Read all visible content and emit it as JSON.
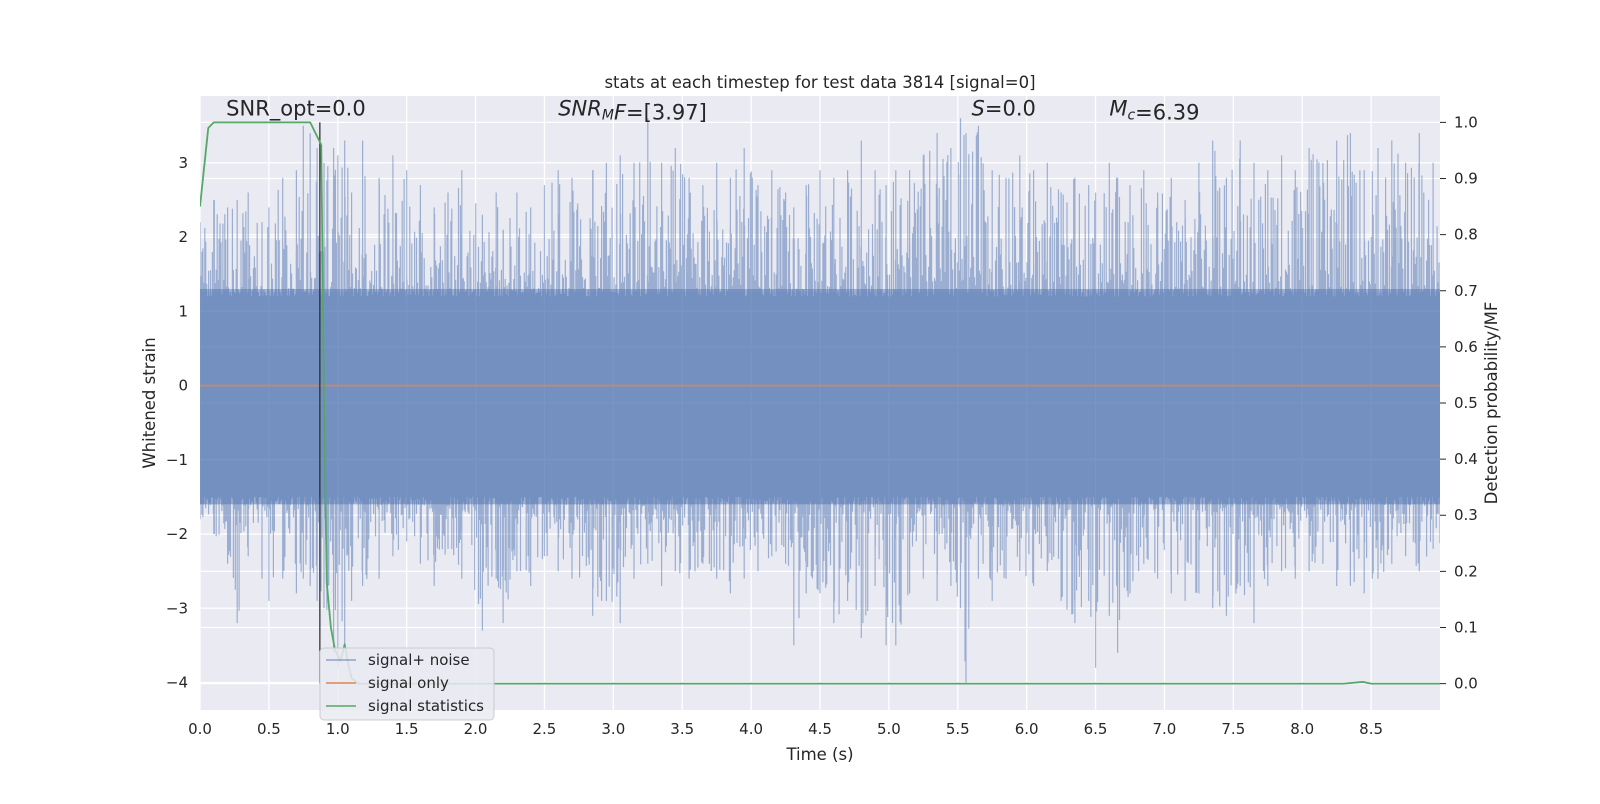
{
  "chart_data": {
    "type": "line",
    "title": "stats at each timestep for test data 3814 [signal=0]",
    "xlabel": "Time (s)",
    "ylabel_left": "Whitened strain",
    "ylabel_right": "Detection probability/MF",
    "xlim": [
      0,
      9.0
    ],
    "ylim_left": [
      -4.37,
      3.9
    ],
    "ylim_right": [
      -0.047,
      1.047
    ],
    "grid": true,
    "legend_placement": "lower-left",
    "x_ticks": [
      "0.0",
      "0.5",
      "1.0",
      "1.5",
      "2.0",
      "2.5",
      "3.0",
      "3.5",
      "4.0",
      "4.5",
      "5.0",
      "5.5",
      "6.0",
      "6.5",
      "7.0",
      "7.5",
      "8.0",
      "8.5"
    ],
    "y_ticks_left": [
      "−4",
      "−3",
      "−2",
      "−1",
      "0",
      "1",
      "2",
      "3"
    ],
    "y_ticks_right": [
      "0.0",
      "0.1",
      "0.2",
      "0.3",
      "0.4",
      "0.5",
      "0.6",
      "0.7",
      "0.8",
      "0.9",
      "1.0"
    ],
    "annotations": [
      {
        "parts": [
          {
            "t": "SNR_opt=0.0",
            "i": false
          }
        ],
        "x": 0.19,
        "y_right": 1.012
      },
      {
        "parts": [
          {
            "t": "SNR",
            "i": true
          },
          {
            "t": "M",
            "i": true,
            "sub": true
          },
          {
            "t": "F",
            "i": true
          },
          {
            "t": "=[3.97]",
            "i": false
          }
        ],
        "x": 2.6,
        "y_right": 1.012
      },
      {
        "parts": [
          {
            "t": "S",
            "i": true
          },
          {
            "t": "=0.0",
            "i": false
          }
        ],
        "x": 5.6,
        "y_right": 1.012
      },
      {
        "parts": [
          {
            "t": "M",
            "i": true
          },
          {
            "t": "c",
            "i": true,
            "sub": true
          },
          {
            "t": "=6.39",
            "i": false
          }
        ],
        "x": 6.6,
        "y_right": 1.012
      }
    ],
    "series": [
      {
        "name": "signal+ noise",
        "axis": "left",
        "color": "#4c72b0",
        "note": "dense whitened noise, approx. envelope below (x, min, max)",
        "envelope": [
          [
            0.0,
            -1.8,
            2.2
          ],
          [
            0.1,
            -2.0,
            2.5
          ],
          [
            0.2,
            -2.4,
            2.4
          ],
          [
            0.27,
            -3.2,
            2.5
          ],
          [
            0.35,
            -2.3,
            2.6
          ],
          [
            0.45,
            -2.6,
            2.2
          ],
          [
            0.5,
            -2.9,
            2.4
          ],
          [
            0.6,
            -2.6,
            2.8
          ],
          [
            0.7,
            -2.8,
            2.9
          ],
          [
            0.75,
            -2.6,
            3.5
          ],
          [
            0.8,
            -2.7,
            3.4
          ],
          [
            0.85,
            -2.9,
            3.2
          ],
          [
            0.9,
            -3.0,
            3.0
          ],
          [
            0.97,
            -3.6,
            3.2
          ],
          [
            1.0,
            -3.8,
            3.1
          ],
          [
            1.05,
            -3.5,
            3.3
          ],
          [
            1.1,
            -2.9,
            2.6
          ],
          [
            1.18,
            -2.7,
            3.3
          ],
          [
            1.3,
            -2.6,
            2.8
          ],
          [
            1.4,
            -2.3,
            3.1
          ],
          [
            1.5,
            -2.1,
            2.9
          ],
          [
            1.6,
            -2.4,
            2.7
          ],
          [
            1.7,
            -2.7,
            2.4
          ],
          [
            1.8,
            -2.2,
            2.6
          ],
          [
            1.9,
            -2.6,
            2.9
          ],
          [
            2.05,
            -3.3,
            2.3
          ],
          [
            2.15,
            -2.6,
            2.6
          ],
          [
            2.2,
            -3.2,
            2.1
          ],
          [
            2.3,
            -2.5,
            2.6
          ],
          [
            2.4,
            -2.7,
            2.4
          ],
          [
            2.5,
            -2.3,
            2.7
          ],
          [
            2.6,
            -2.5,
            2.9
          ],
          [
            2.7,
            -2.6,
            2.8
          ],
          [
            2.85,
            -3.1,
            2.9
          ],
          [
            2.95,
            -2.9,
            3.0
          ],
          [
            3.05,
            -3.2,
            3.1
          ],
          [
            3.15,
            -2.6,
            3.0
          ],
          [
            3.25,
            -2.4,
            3.6
          ],
          [
            3.35,
            -2.7,
            3.0
          ],
          [
            3.45,
            -2.5,
            3.2
          ],
          [
            3.55,
            -2.6,
            2.8
          ],
          [
            3.65,
            -2.4,
            2.7
          ],
          [
            3.75,
            -2.6,
            3.0
          ],
          [
            3.85,
            -2.8,
            2.8
          ],
          [
            3.95,
            -2.6,
            3.2
          ],
          [
            4.05,
            -2.5,
            2.7
          ],
          [
            4.15,
            -2.3,
            2.9
          ],
          [
            4.25,
            -2.4,
            2.6
          ],
          [
            4.31,
            -3.5,
            2.4
          ],
          [
            4.4,
            -2.8,
            2.7
          ],
          [
            4.5,
            -2.8,
            2.9
          ],
          [
            4.6,
            -3.2,
            2.8
          ],
          [
            4.7,
            -2.9,
            2.9
          ],
          [
            4.8,
            -3.4,
            3.3
          ],
          [
            4.9,
            -2.7,
            2.9
          ],
          [
            4.98,
            -3.5,
            2.7
          ],
          [
            5.05,
            -3.5,
            2.9
          ],
          [
            5.15,
            -2.8,
            2.9
          ],
          [
            5.25,
            -2.6,
            3.1
          ],
          [
            5.35,
            -2.9,
            3.4
          ],
          [
            5.45,
            -2.7,
            3.2
          ],
          [
            5.52,
            -3.0,
            3.6
          ],
          [
            5.56,
            -4.0,
            3.4
          ],
          [
            5.65,
            -2.6,
            3.5
          ],
          [
            5.75,
            -2.9,
            2.9
          ],
          [
            5.85,
            -2.6,
            2.8
          ],
          [
            5.95,
            -2.5,
            3.1
          ],
          [
            6.05,
            -2.7,
            2.9
          ],
          [
            6.15,
            -2.5,
            3.0
          ],
          [
            6.25,
            -2.9,
            2.6
          ],
          [
            6.35,
            -3.2,
            2.8
          ],
          [
            6.45,
            -2.9,
            2.7
          ],
          [
            6.5,
            -3.8,
            2.6
          ],
          [
            6.6,
            -3.1,
            3.0
          ],
          [
            6.66,
            -3.6,
            2.8
          ],
          [
            6.75,
            -2.8,
            2.7
          ],
          [
            6.85,
            -2.4,
            2.9
          ],
          [
            6.95,
            -2.6,
            2.6
          ],
          [
            7.05,
            -2.8,
            2.8
          ],
          [
            7.15,
            -2.9,
            2.5
          ],
          [
            7.25,
            -2.8,
            3.0
          ],
          [
            7.35,
            -3.0,
            3.3
          ],
          [
            7.45,
            -3.1,
            2.8
          ],
          [
            7.55,
            -2.7,
            3.3
          ],
          [
            7.65,
            -3.2,
            3.0
          ],
          [
            7.75,
            -2.7,
            2.9
          ],
          [
            7.85,
            -2.5,
            3.1
          ],
          [
            7.95,
            -2.6,
            2.9
          ],
          [
            8.05,
            -2.5,
            3.2
          ],
          [
            8.15,
            -2.4,
            3.0
          ],
          [
            8.25,
            -2.7,
            3.3
          ],
          [
            8.35,
            -2.7,
            3.4
          ],
          [
            8.45,
            -2.8,
            2.9
          ],
          [
            8.55,
            -2.6,
            3.2
          ],
          [
            8.65,
            -2.4,
            3.3
          ],
          [
            8.75,
            -2.3,
            3.0
          ],
          [
            8.85,
            -2.5,
            3.4
          ],
          [
            8.95,
            -2.2,
            3.0
          ]
        ]
      },
      {
        "name": "signal only",
        "axis": "left",
        "color": "#dd8452",
        "x": [
          0.0,
          9.0
        ],
        "y": [
          0.0,
          0.0
        ]
      },
      {
        "name": "signal statistics",
        "axis": "right",
        "color": "#55a868",
        "x": [
          0.0,
          0.06,
          0.1,
          0.2,
          0.3,
          0.4,
          0.5,
          0.6,
          0.7,
          0.8,
          0.88,
          0.9,
          0.92,
          0.95,
          0.98,
          1.02,
          1.05,
          1.08,
          1.1,
          1.15,
          1.2,
          1.5,
          2.0,
          3.0,
          4.0,
          5.0,
          6.0,
          7.0,
          8.0,
          8.3,
          8.44,
          8.5,
          9.0
        ],
        "y": [
          0.85,
          0.99,
          1.0,
          1.0,
          1.0,
          1.0,
          1.0,
          1.0,
          1.0,
          1.0,
          0.96,
          0.5,
          0.18,
          0.1,
          0.06,
          0.04,
          0.07,
          0.03,
          0.01,
          0.0,
          0.0,
          0.0,
          0.0,
          0.0,
          0.0,
          0.0,
          0.0,
          0.0,
          0.0,
          0.0,
          0.003,
          0.0,
          0.0
        ]
      }
    ],
    "vline": {
      "x": 0.87,
      "color": "#262626"
    }
  }
}
